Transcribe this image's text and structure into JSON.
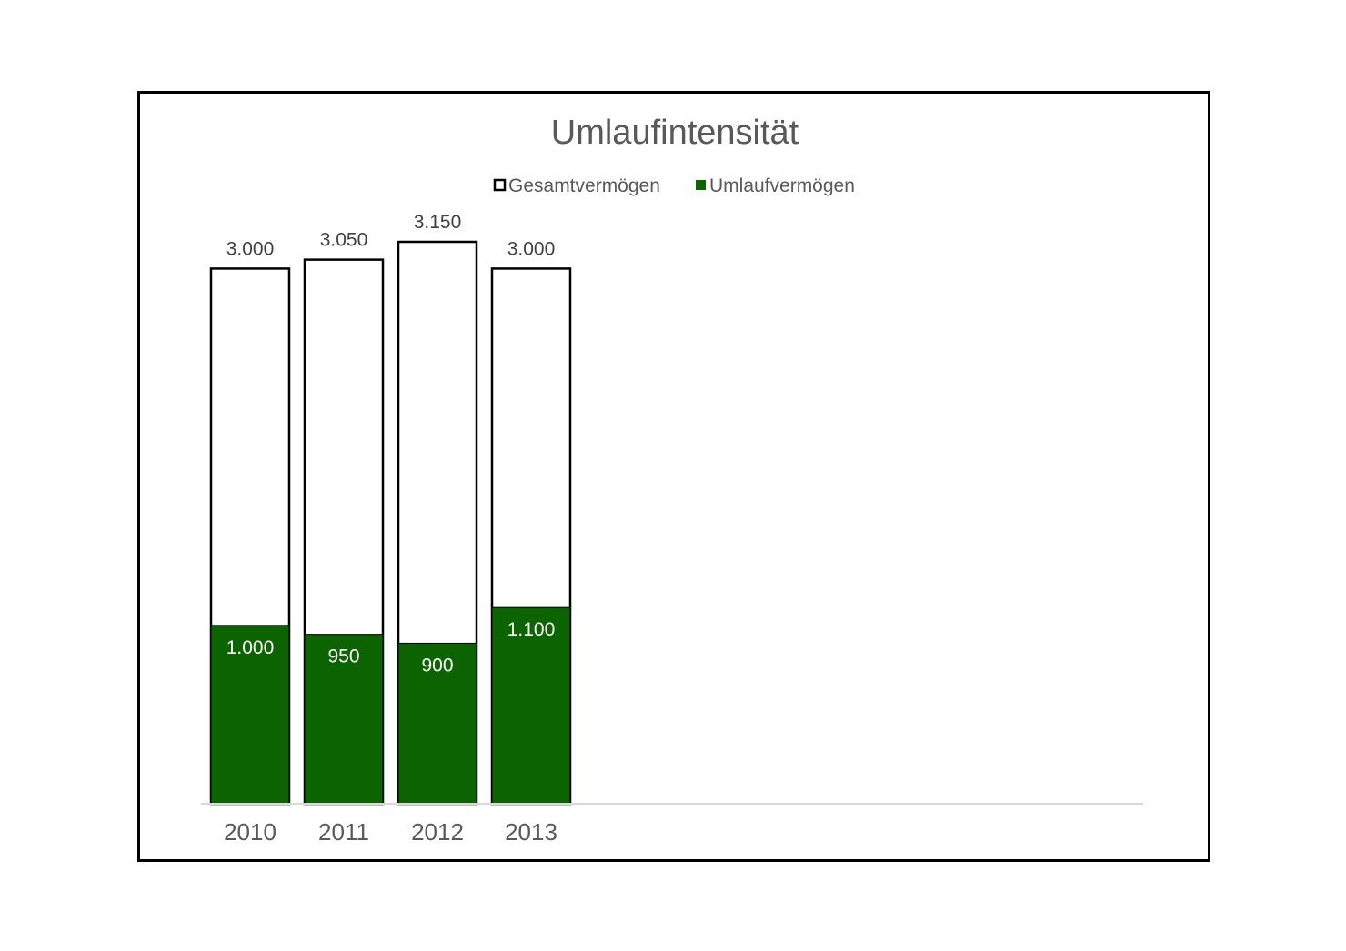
{
  "chart_data": {
    "type": "bar",
    "title": "Umlaufintensität",
    "categories": [
      "2010",
      "2011",
      "2012",
      "2013"
    ],
    "series": [
      {
        "name": "Gesamtvermögen",
        "values": [
          3000,
          3050,
          3150,
          3000
        ],
        "labels": [
          "3.000",
          "3.050",
          "3.150",
          "3.000"
        ],
        "color": "#ffffff",
        "border": "#000000"
      },
      {
        "name": "Umlaufvermögen",
        "values": [
          1000,
          950,
          900,
          1100
        ],
        "labels": [
          "1.000",
          "950",
          "900",
          "1.100"
        ],
        "color": "#0b6400"
      }
    ],
    "overlapping": true,
    "legend_position": "top",
    "grid": false,
    "ylim": [
      0,
      3150
    ]
  },
  "colors": {
    "umlauf": "#0b6400",
    "gesamt_fill": "#ffffff",
    "gesamt_border": "#000000",
    "text": "#595959",
    "axis": "#d9d9d9"
  }
}
